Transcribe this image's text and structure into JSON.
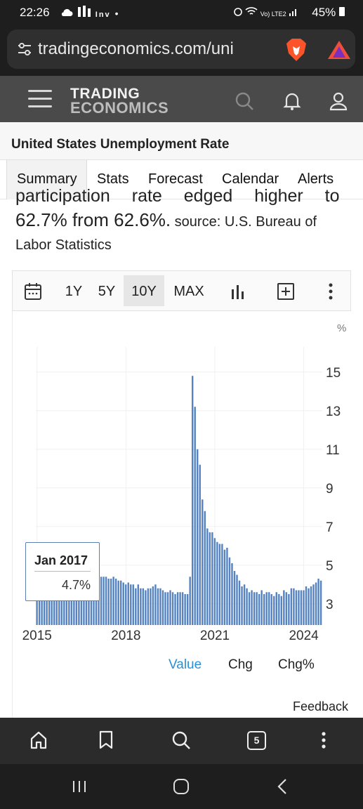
{
  "status_bar": {
    "time": "22:26",
    "left_icons": "cloud-icon bars-icon inv-icon dot",
    "inv_label": "Inv",
    "network": "Vo) LTE2",
    "battery": "45%"
  },
  "browser": {
    "url": "tradingeconomics.com/uni",
    "icons": [
      "tune-icon",
      "brave-lion-icon",
      "brave-rewards-triangle-icon"
    ]
  },
  "site_header": {
    "logo_line1": "TRADING",
    "logo_line2": "ECONOMICS",
    "icons": [
      "search-icon",
      "bell-icon",
      "user-icon"
    ]
  },
  "page_title": "United States Unemployment Rate",
  "tabs": [
    "Summary",
    "Stats",
    "Forecast",
    "Calendar",
    "Alerts"
  ],
  "article": {
    "cut_line": "participation rate edged higher to",
    "line2_main": "62.7% from 62.6%.",
    "line2_source": " source: U.S. Bureau of",
    "line3": "Labor Statistics"
  },
  "toolbar": {
    "ranges": [
      "1Y",
      "5Y",
      "10Y",
      "MAX"
    ],
    "active_range": "10Y",
    "icons": [
      "calendar-icon",
      "bar-chart-icon",
      "add-box-icon",
      "more-vert-icon"
    ]
  },
  "chart_data": {
    "type": "bar",
    "unit_label": "%",
    "y_ticks": [
      3,
      5,
      7,
      9,
      11,
      13,
      15
    ],
    "ylim": [
      1.9,
      16.3
    ],
    "x_ticks": [
      "2015",
      "2018",
      "2021",
      "2024"
    ],
    "x_start": "2015-01",
    "values": [
      5.7,
      5.5,
      5.4,
      5.4,
      5.6,
      5.3,
      5.2,
      5.1,
      5.0,
      5.0,
      5.1,
      5.0,
      4.8,
      4.9,
      5.0,
      5.1,
      4.8,
      4.9,
      4.8,
      4.9,
      5.0,
      4.9,
      4.7,
      4.7,
      4.7,
      4.6,
      4.4,
      4.4,
      4.4,
      4.3,
      4.3,
      4.4,
      4.3,
      4.2,
      4.2,
      4.1,
      4.0,
      4.1,
      4.0,
      4.0,
      3.8,
      4.0,
      3.8,
      3.8,
      3.7,
      3.8,
      3.8,
      3.9,
      4.0,
      3.8,
      3.8,
      3.7,
      3.6,
      3.6,
      3.7,
      3.6,
      3.5,
      3.6,
      3.6,
      3.6,
      3.5,
      3.5,
      4.4,
      14.8,
      13.2,
      11.0,
      10.2,
      8.4,
      7.8,
      6.9,
      6.7,
      6.7,
      6.4,
      6.2,
      6.1,
      6.1,
      5.8,
      5.9,
      5.4,
      5.1,
      4.7,
      4.5,
      4.2,
      3.9,
      4.0,
      3.8,
      3.6,
      3.7,
      3.6,
      3.6,
      3.5,
      3.7,
      3.5,
      3.6,
      3.6,
      3.5,
      3.4,
      3.6,
      3.5,
      3.4,
      3.7,
      3.6,
      3.5,
      3.8,
      3.8,
      3.7,
      3.7,
      3.7,
      3.7,
      3.9,
      3.8,
      3.9,
      4.0,
      4.1,
      4.3,
      4.2
    ],
    "tooltip": {
      "date": "Jan 2017",
      "value": "4.7%"
    },
    "series_color": "#5583c2"
  },
  "chart_modes": [
    "Value",
    "Chg",
    "Chg%"
  ],
  "active_mode": "Value",
  "feedback_label": "Feedback",
  "bottom_nav": {
    "tab_count": "5",
    "icons": [
      "home-icon",
      "bookmark-icon",
      "search-icon",
      "tabs-icon",
      "more-vert-icon"
    ]
  },
  "system_nav": [
    "recents-icon",
    "home-button-icon",
    "back-icon"
  ]
}
